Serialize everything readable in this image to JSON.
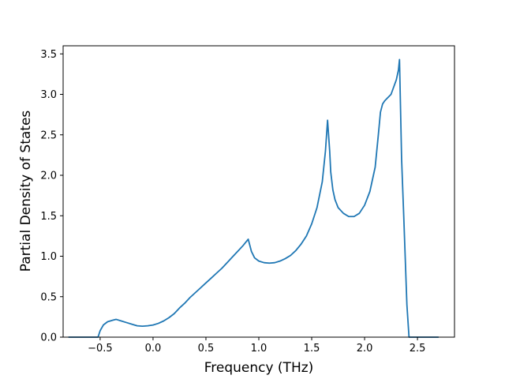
{
  "chart_data": {
    "type": "line",
    "title": "",
    "xlabel": "Frequency (THz)",
    "ylabel": "Partial Density of States",
    "xlim": [
      -0.85,
      2.85
    ],
    "ylim": [
      0,
      3.6
    ],
    "xticks": [
      -0.5,
      0.0,
      0.5,
      1.0,
      1.5,
      2.0,
      2.5
    ],
    "xtick_labels": [
      "−0.5",
      "0.0",
      "0.5",
      "1.0",
      "1.5",
      "2.0",
      "2.5"
    ],
    "yticks": [
      0.0,
      0.5,
      1.0,
      1.5,
      2.0,
      2.5,
      3.0,
      3.5
    ],
    "ytick_labels": [
      "0.0",
      "0.5",
      "1.0",
      "1.5",
      "2.0",
      "2.5",
      "3.0",
      "3.5"
    ],
    "grid": false,
    "series_color": "#1f77b4",
    "series": [
      {
        "x": [
          -0.8,
          -0.52,
          -0.5,
          -0.47,
          -0.43,
          -0.38,
          -0.35,
          -0.3,
          -0.25,
          -0.2,
          -0.15,
          -0.1,
          -0.05,
          0.0,
          0.05,
          0.1,
          0.15,
          0.2,
          0.25,
          0.3,
          0.35,
          0.4,
          0.45,
          0.5,
          0.55,
          0.6,
          0.65,
          0.7,
          0.75,
          0.8,
          0.85,
          0.9,
          0.93,
          0.96,
          1.0,
          1.05,
          1.1,
          1.15,
          1.2,
          1.25,
          1.3,
          1.35,
          1.4,
          1.45,
          1.5,
          1.55,
          1.6,
          1.63,
          1.65,
          1.67,
          1.68,
          1.7,
          1.72,
          1.75,
          1.8,
          1.85,
          1.9,
          1.95,
          2.0,
          2.05,
          2.1,
          2.13,
          2.15,
          2.17,
          2.19,
          2.25,
          2.3,
          2.32,
          2.33,
          2.35,
          2.37,
          2.4,
          2.42,
          2.5,
          2.7
        ],
        "y": [
          0.0,
          0.0,
          0.08,
          0.15,
          0.19,
          0.21,
          0.22,
          0.2,
          0.18,
          0.16,
          0.14,
          0.135,
          0.14,
          0.15,
          0.17,
          0.2,
          0.24,
          0.29,
          0.36,
          0.42,
          0.49,
          0.55,
          0.61,
          0.67,
          0.73,
          0.79,
          0.85,
          0.92,
          0.99,
          1.06,
          1.13,
          1.21,
          1.06,
          0.98,
          0.94,
          0.92,
          0.915,
          0.92,
          0.94,
          0.97,
          1.01,
          1.07,
          1.15,
          1.25,
          1.4,
          1.6,
          1.92,
          2.3,
          2.68,
          2.3,
          2.04,
          1.82,
          1.7,
          1.6,
          1.53,
          1.49,
          1.49,
          1.53,
          1.63,
          1.8,
          2.1,
          2.5,
          2.78,
          2.88,
          2.92,
          3.0,
          3.18,
          3.3,
          3.43,
          2.2,
          1.5,
          0.4,
          0.0,
          0.0,
          0.0
        ]
      }
    ]
  }
}
